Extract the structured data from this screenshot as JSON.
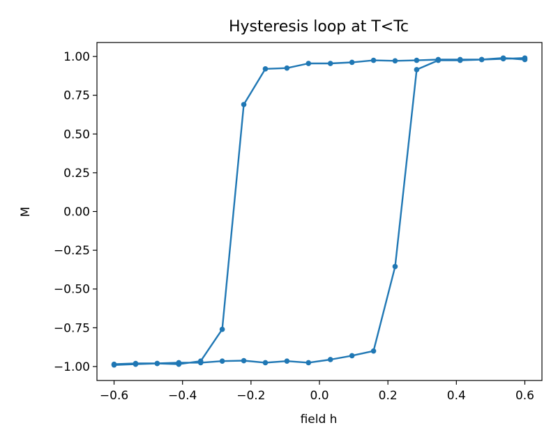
{
  "chart_data": {
    "type": "line",
    "title": "Hysteresis loop at T<Tc",
    "xlabel": "field h",
    "ylabel": "M",
    "xlim": [
      -0.65,
      0.65
    ],
    "ylim": [
      -1.09,
      1.09
    ],
    "xticks": [
      -0.6,
      -0.4,
      -0.2,
      0.0,
      0.2,
      0.4,
      0.6
    ],
    "xtick_labels": [
      "−0.6",
      "−0.4",
      "−0.2",
      "0.0",
      "0.2",
      "0.4",
      "0.6"
    ],
    "yticks": [
      1.0,
      0.75,
      0.5,
      0.25,
      0.0,
      -0.25,
      -0.5,
      -0.75,
      -1.0
    ],
    "ytick_labels": [
      "1.00",
      "0.75",
      "0.50",
      "0.25",
      "0.00",
      "−0.25",
      "−0.50",
      "−0.75",
      "−1.00"
    ],
    "grid": false,
    "color": "#1f77b4",
    "series": [
      {
        "x": [
          -0.6,
          -0.537,
          -0.474,
          -0.411,
          -0.347,
          -0.284,
          -0.221,
          -0.158,
          -0.095,
          -0.032,
          0.032,
          0.095,
          0.158,
          0.221,
          0.284,
          0.347,
          0.411,
          0.474,
          0.537,
          0.6,
          0.6,
          0.537,
          0.474,
          0.411,
          0.347,
          0.284,
          0.221,
          0.158,
          0.095,
          0.032,
          -0.032,
          -0.095,
          -0.158,
          -0.221,
          -0.284,
          -0.347,
          -0.411,
          -0.474,
          -0.537,
          -0.6
        ],
        "y": [
          -0.985,
          -0.98,
          -0.98,
          -0.975,
          -0.975,
          -0.965,
          -0.962,
          -0.975,
          -0.965,
          -0.975,
          -0.955,
          -0.93,
          -0.9,
          -0.355,
          0.915,
          0.975,
          0.975,
          0.98,
          0.985,
          0.99,
          0.98,
          0.99,
          0.98,
          0.98,
          0.98,
          0.975,
          0.972,
          0.975,
          0.962,
          0.955,
          0.955,
          0.925,
          0.92,
          0.69,
          -0.76,
          -0.965,
          -0.985,
          -0.98,
          -0.985,
          -0.99
        ]
      }
    ]
  }
}
